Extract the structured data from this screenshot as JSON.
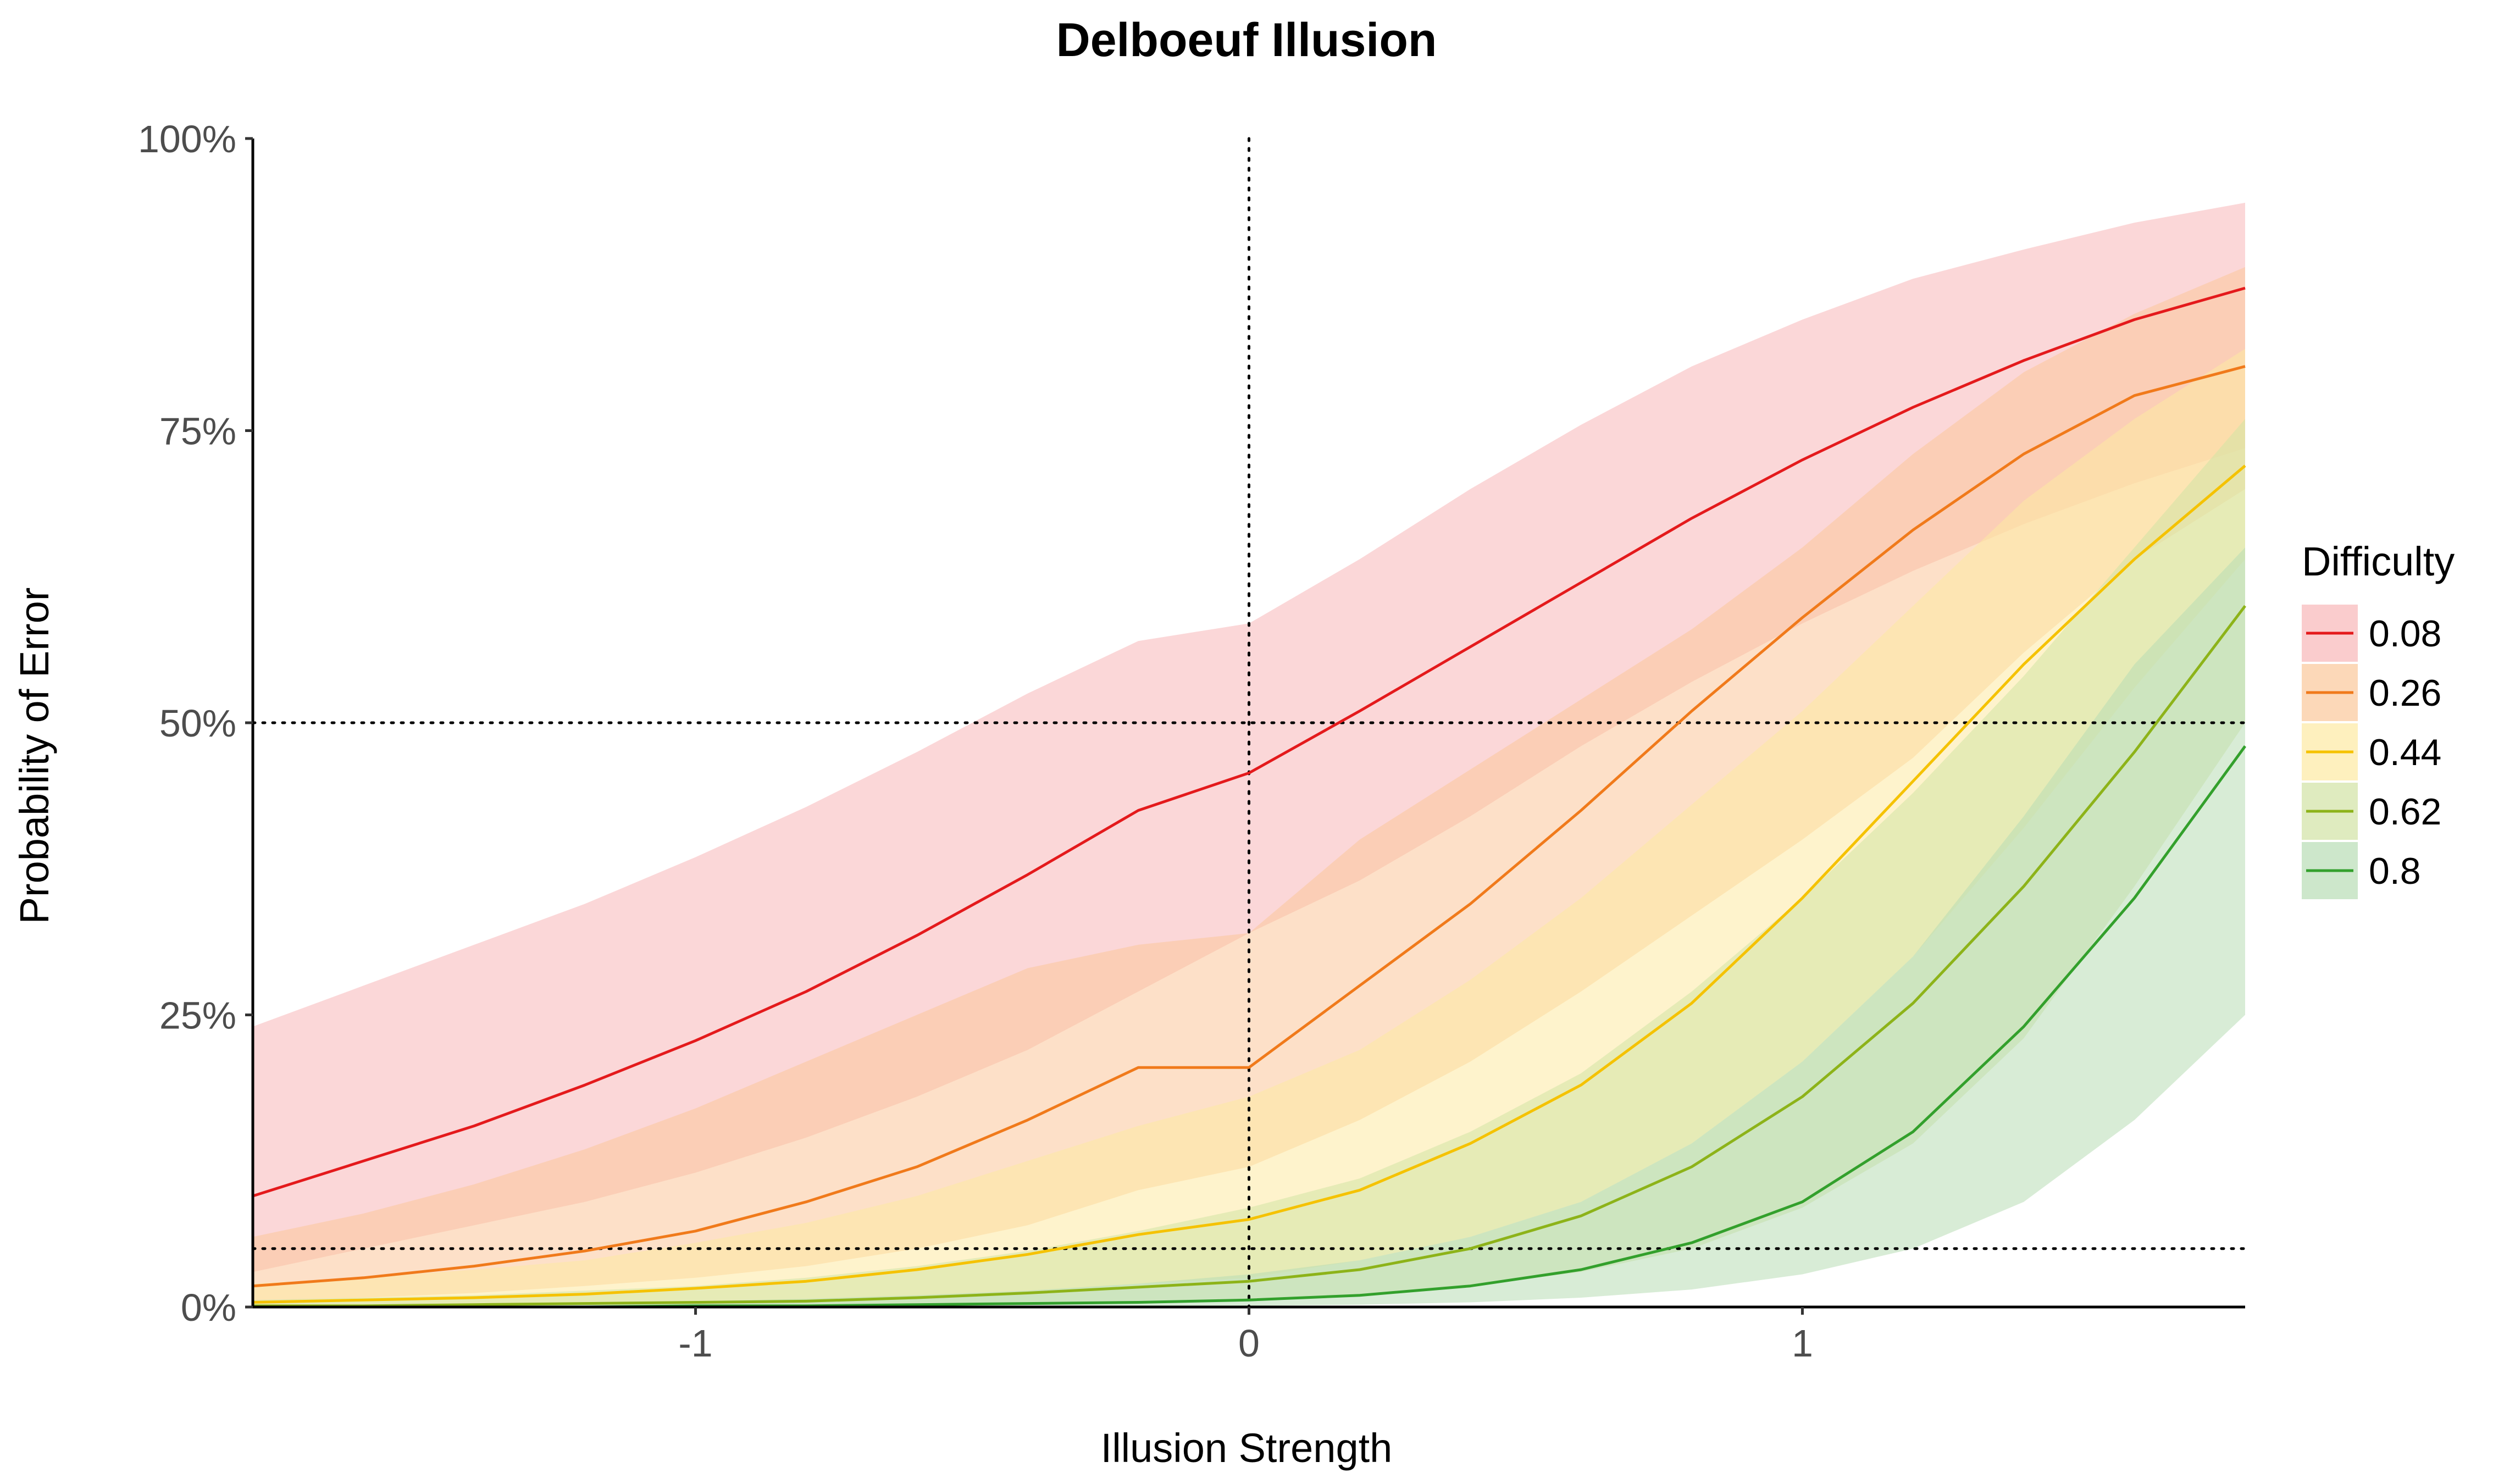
{
  "chart_data": {
    "type": "line",
    "title": "Delboeuf Illusion",
    "xlabel": "Illusion Strength",
    "ylabel": "Probability of Error",
    "xlim": [
      -1.8,
      1.8
    ],
    "ylim": [
      0,
      1
    ],
    "x_ticks": [
      {
        "value": -1,
        "label": "-1"
      },
      {
        "value": 0,
        "label": "0"
      },
      {
        "value": 1,
        "label": "1"
      }
    ],
    "y_ticks": [
      {
        "value": 0,
        "label": "0%"
      },
      {
        "value": 0.25,
        "label": "25%"
      },
      {
        "value": 0.5,
        "label": "50%"
      },
      {
        "value": 0.75,
        "label": "75%"
      },
      {
        "value": 1,
        "label": "100%"
      }
    ],
    "reference_lines": {
      "vertical": [
        0
      ],
      "horizontal": [
        0.05,
        0.5
      ],
      "style": "dotted"
    },
    "legend": {
      "title": "Difficulty",
      "position": "right"
    },
    "grid": false,
    "x": [
      -1.8,
      -1.6,
      -1.4,
      -1.2,
      -1.0,
      -0.8,
      -0.6,
      -0.4,
      -0.2,
      0.0,
      0.2,
      0.4,
      0.6,
      0.8,
      1.0,
      1.2,
      1.4,
      1.6,
      1.8
    ],
    "series": [
      {
        "name": "0.08",
        "color": "#E41A1C",
        "fill": "#F8B7B8",
        "values": [
          0.095,
          0.125,
          0.155,
          0.19,
          0.228,
          0.27,
          0.318,
          0.37,
          0.425,
          0.457,
          0.51,
          0.565,
          0.62,
          0.675,
          0.725,
          0.77,
          0.81,
          0.845,
          0.872
        ],
        "lower": [
          0.03,
          0.05,
          0.07,
          0.09,
          0.115,
          0.145,
          0.18,
          0.22,
          0.27,
          0.32,
          0.365,
          0.42,
          0.48,
          0.535,
          0.585,
          0.63,
          0.67,
          0.705,
          0.735
        ],
        "upper": [
          0.24,
          0.275,
          0.31,
          0.345,
          0.385,
          0.428,
          0.475,
          0.525,
          0.57,
          0.585,
          0.64,
          0.7,
          0.755,
          0.805,
          0.845,
          0.88,
          0.905,
          0.928,
          0.945
        ]
      },
      {
        "name": "0.26",
        "color": "#F07A1B",
        "fill": "#FBC79A",
        "values": [
          0.018,
          0.025,
          0.035,
          0.048,
          0.065,
          0.09,
          0.12,
          0.16,
          0.205,
          0.205,
          0.275,
          0.345,
          0.425,
          0.51,
          0.59,
          0.665,
          0.73,
          0.78,
          0.805
        ],
        "lower": [
          0.005,
          0.008,
          0.012,
          0.018,
          0.025,
          0.035,
          0.05,
          0.07,
          0.1,
          0.12,
          0.16,
          0.21,
          0.27,
          0.335,
          0.4,
          0.47,
          0.56,
          0.64,
          0.7
        ],
        "upper": [
          0.06,
          0.08,
          0.105,
          0.135,
          0.17,
          0.21,
          0.25,
          0.29,
          0.31,
          0.32,
          0.4,
          0.46,
          0.52,
          0.58,
          0.65,
          0.73,
          0.8,
          0.85,
          0.89
        ]
      },
      {
        "name": "0.44",
        "color": "#F5C200",
        "fill": "#FDE9A2",
        "values": [
          0.004,
          0.006,
          0.008,
          0.011,
          0.016,
          0.022,
          0.032,
          0.045,
          0.062,
          0.075,
          0.1,
          0.14,
          0.19,
          0.26,
          0.35,
          0.45,
          0.55,
          0.64,
          0.72
        ],
        "lower": [
          0.001,
          0.001,
          0.002,
          0.003,
          0.004,
          0.006,
          0.009,
          0.013,
          0.02,
          0.025,
          0.04,
          0.06,
          0.09,
          0.14,
          0.21,
          0.3,
          0.41,
          0.53,
          0.64
        ],
        "upper": [
          0.02,
          0.025,
          0.032,
          0.04,
          0.055,
          0.072,
          0.095,
          0.125,
          0.155,
          0.18,
          0.22,
          0.28,
          0.35,
          0.43,
          0.51,
          0.6,
          0.69,
          0.76,
          0.82
        ]
      },
      {
        "name": "0.62",
        "color": "#8DB319",
        "fill": "#D2E3A4",
        "values": [
          0.001,
          0.001,
          0.002,
          0.003,
          0.004,
          0.005,
          0.008,
          0.012,
          0.017,
          0.022,
          0.032,
          0.05,
          0.078,
          0.12,
          0.18,
          0.26,
          0.36,
          0.475,
          0.6
        ],
        "lower": [
          0.0,
          0.0,
          0.0,
          0.0,
          0.001,
          0.001,
          0.002,
          0.003,
          0.005,
          0.007,
          0.011,
          0.018,
          0.03,
          0.05,
          0.085,
          0.14,
          0.23,
          0.36,
          0.5
        ],
        "upper": [
          0.006,
          0.008,
          0.01,
          0.014,
          0.018,
          0.025,
          0.035,
          0.048,
          0.065,
          0.085,
          0.11,
          0.15,
          0.2,
          0.27,
          0.35,
          0.44,
          0.54,
          0.65,
          0.76
        ]
      },
      {
        "name": "0.8",
        "color": "#33A02C",
        "fill": "#B8DDB5",
        "values": [
          0.0,
          0.0,
          0.0,
          0.0,
          0.001,
          0.001,
          0.002,
          0.003,
          0.004,
          0.006,
          0.01,
          0.018,
          0.032,
          0.055,
          0.09,
          0.15,
          0.24,
          0.35,
          0.48
        ],
        "lower": [
          0.0,
          0.0,
          0.0,
          0.0,
          0.0,
          0.0,
          0.0,
          0.001,
          0.001,
          0.001,
          0.002,
          0.004,
          0.008,
          0.015,
          0.028,
          0.05,
          0.09,
          0.16,
          0.25
        ],
        "upper": [
          0.001,
          0.002,
          0.003,
          0.004,
          0.005,
          0.007,
          0.01,
          0.014,
          0.02,
          0.028,
          0.04,
          0.06,
          0.09,
          0.14,
          0.21,
          0.3,
          0.42,
          0.55,
          0.65
        ]
      }
    ]
  }
}
